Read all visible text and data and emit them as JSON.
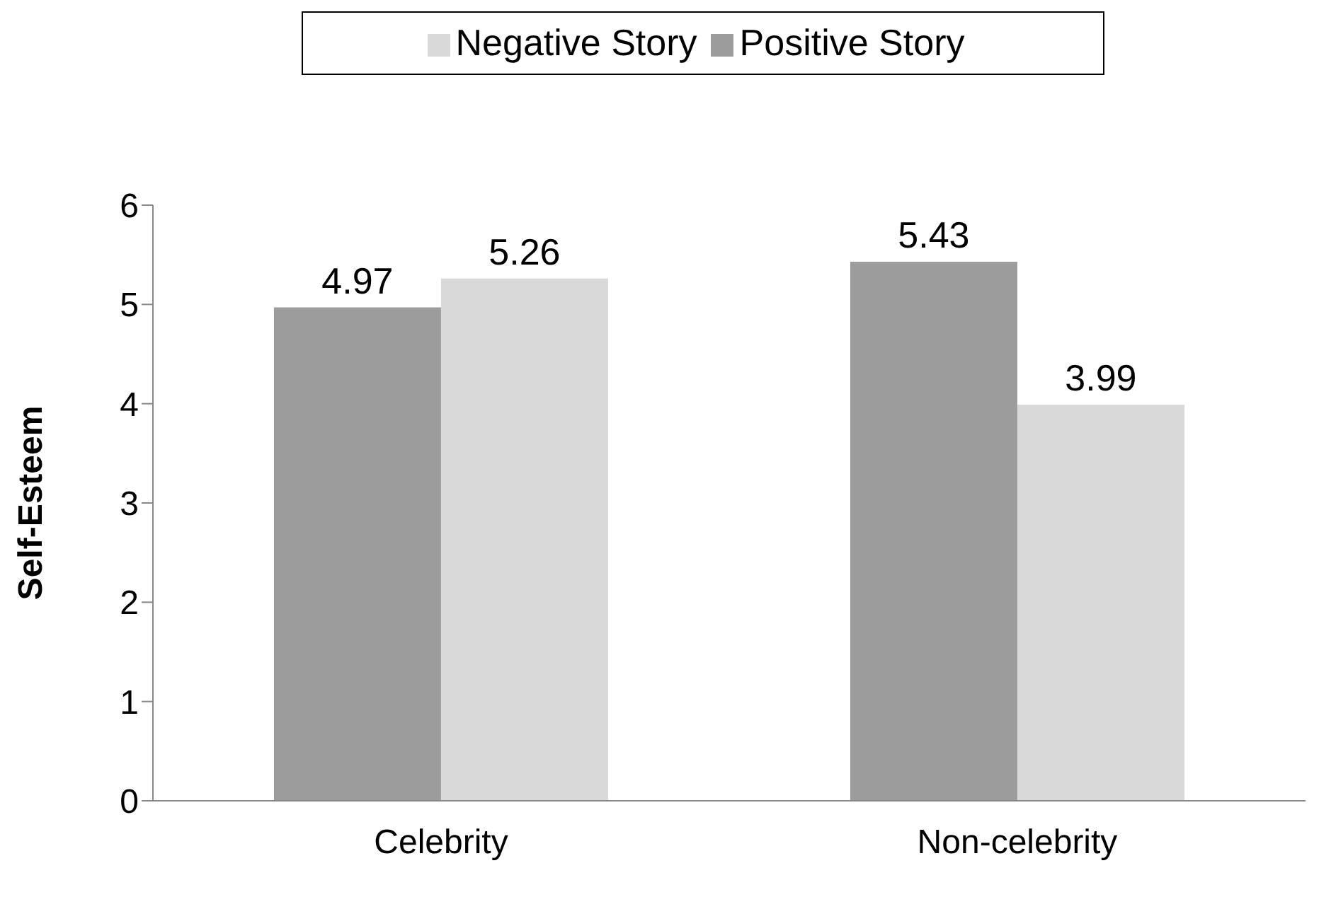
{
  "chart_data": {
    "type": "bar",
    "ylabel": "Self-Esteem",
    "categories": [
      "Celebrity",
      "Non-celebrity"
    ],
    "series": [
      {
        "name": "Positive Story",
        "color": "#9c9c9c",
        "values": [
          4.97,
          5.43
        ]
      },
      {
        "name": "Negative Story",
        "color": "#d9d9d9",
        "values": [
          5.26,
          3.99
        ]
      }
    ],
    "ylim": [
      0,
      6
    ],
    "yticks": [
      0,
      1,
      2,
      3,
      4,
      5,
      6
    ],
    "grid": false,
    "legend": "top",
    "data_labels": true
  }
}
